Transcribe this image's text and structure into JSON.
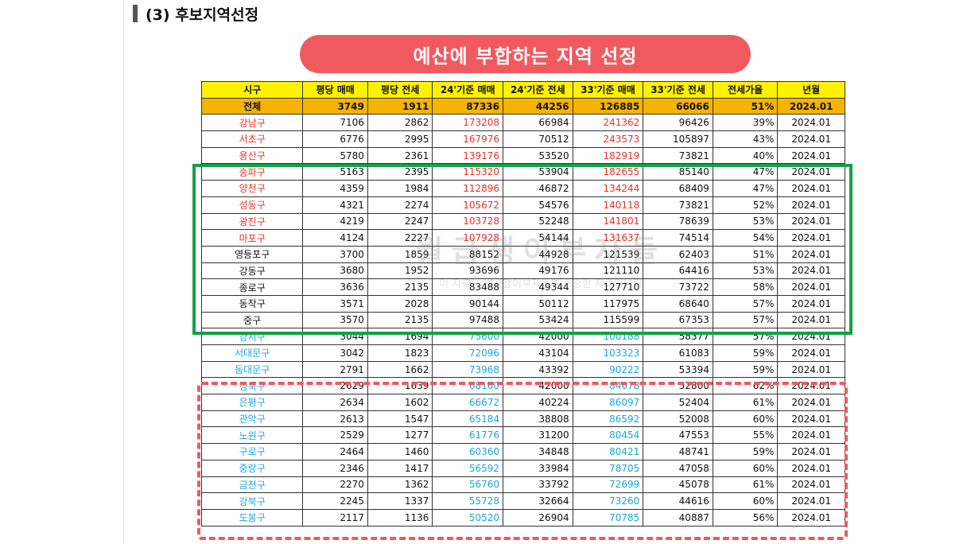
{
  "section_title": "(3) 후보지역선정",
  "banner": "예산에 부합하는 지역 선정",
  "watermark": {
    "main": "월급쟁이부자들",
    "sub": "이 자료는 월급쟁이부자들의 소중한 자료입니다"
  },
  "colors": {
    "red": "#e8302b",
    "blue": "#1aa6dc",
    "green_box": "#14a047",
    "red_box": "#f0585d",
    "header": "#fff200",
    "total": "#f5b400"
  },
  "table": {
    "headers": [
      "시구",
      "평당 매매",
      "평당 전세",
      "24'기준 매매",
      "24'기준 전세",
      "33'기준 매매",
      "33'기준 전세",
      "전세가율",
      "년월"
    ],
    "total": [
      "전체",
      "3749",
      "1911",
      "87336",
      "44256",
      "126885",
      "66066",
      "51%",
      "2024.01"
    ],
    "rows": [
      {
        "c": "red",
        "v": [
          "강남구",
          "7106",
          "2862",
          "173208",
          "66984",
          "241362",
          "96426",
          "39%",
          "2024.01"
        ]
      },
      {
        "c": "red",
        "v": [
          "서초구",
          "6776",
          "2995",
          "167976",
          "70512",
          "243573",
          "105897",
          "43%",
          "2024.01"
        ]
      },
      {
        "c": "red",
        "v": [
          "용산구",
          "5780",
          "2361",
          "139176",
          "53520",
          "182919",
          "73821",
          "40%",
          "2024.01"
        ]
      },
      {
        "c": "red",
        "v": [
          "송파구",
          "5163",
          "2395",
          "115320",
          "53904",
          "182655",
          "85140",
          "47%",
          "2024.01"
        ]
      },
      {
        "c": "red",
        "v": [
          "양천구",
          "4359",
          "1984",
          "112896",
          "46872",
          "134244",
          "68409",
          "47%",
          "2024.01"
        ]
      },
      {
        "c": "red",
        "v": [
          "성동구",
          "4321",
          "2274",
          "105672",
          "54576",
          "140118",
          "73821",
          "52%",
          "2024.01"
        ]
      },
      {
        "c": "red",
        "v": [
          "광진구",
          "4219",
          "2247",
          "103728",
          "52248",
          "141801",
          "78639",
          "53%",
          "2024.01"
        ]
      },
      {
        "c": "red",
        "v": [
          "마포구",
          "4124",
          "2227",
          "107928",
          "54144",
          "131637",
          "74514",
          "54%",
          "2024.01"
        ]
      },
      {
        "c": "black",
        "v": [
          "영등포구",
          "3700",
          "1859",
          "88152",
          "44928",
          "121539",
          "62403",
          "51%",
          "2024.01"
        ]
      },
      {
        "c": "black",
        "v": [
          "강동구",
          "3680",
          "1952",
          "93696",
          "49176",
          "121110",
          "64416",
          "53%",
          "2024.01"
        ]
      },
      {
        "c": "black",
        "v": [
          "종로구",
          "3636",
          "2135",
          "83488",
          "49344",
          "127710",
          "73722",
          "58%",
          "2024.01"
        ]
      },
      {
        "c": "black",
        "v": [
          "동작구",
          "3571",
          "2028",
          "90144",
          "50112",
          "117975",
          "68640",
          "57%",
          "2024.01"
        ]
      },
      {
        "c": "black",
        "v": [
          "중구",
          "3570",
          "2135",
          "97488",
          "53424",
          "115599",
          "67353",
          "57%",
          "2024.01"
        ]
      },
      {
        "c": "blue",
        "v": [
          "강서구",
          "3044",
          "1694",
          "75600",
          "42000",
          "100188",
          "58377",
          "57%",
          "2024.01"
        ]
      },
      {
        "c": "blue",
        "v": [
          "서대문구",
          "3042",
          "1823",
          "72096",
          "43104",
          "103323",
          "61083",
          "59%",
          "2024.01"
        ]
      },
      {
        "c": "blue",
        "v": [
          "동대문구",
          "2791",
          "1662",
          "73968",
          "43392",
          "90222",
          "53394",
          "59%",
          "2024.01"
        ]
      },
      {
        "c": "blue",
        "v": [
          "성북구",
          "2629",
          "1639",
          "68160",
          "42000",
          "84678",
          "52800",
          "62%",
          "2024.01"
        ]
      },
      {
        "c": "blue",
        "v": [
          "은평구",
          "2634",
          "1602",
          "66672",
          "40224",
          "86097",
          "52404",
          "61%",
          "2024.01"
        ]
      },
      {
        "c": "blue",
        "v": [
          "관악구",
          "2613",
          "1547",
          "65184",
          "38808",
          "86592",
          "52008",
          "60%",
          "2024.01"
        ]
      },
      {
        "c": "blue",
        "v": [
          "노원구",
          "2529",
          "1277",
          "61776",
          "31200",
          "80454",
          "47553",
          "55%",
          "2024.01"
        ]
      },
      {
        "c": "blue",
        "v": [
          "구로구",
          "2464",
          "1460",
          "60360",
          "34848",
          "80421",
          "48741",
          "59%",
          "2024.01"
        ]
      },
      {
        "c": "blue",
        "v": [
          "중랑구",
          "2346",
          "1417",
          "56592",
          "33984",
          "78705",
          "47058",
          "60%",
          "2024.01"
        ]
      },
      {
        "c": "blue",
        "v": [
          "금천구",
          "2270",
          "1362",
          "56760",
          "33792",
          "72699",
          "45078",
          "61%",
          "2024.01"
        ]
      },
      {
        "c": "blue",
        "v": [
          "강북구",
          "2245",
          "1337",
          "55728",
          "32664",
          "73260",
          "44616",
          "60%",
          "2024.01"
        ]
      },
      {
        "c": "blue",
        "v": [
          "도봉구",
          "2117",
          "1136",
          "50520",
          "26904",
          "70785",
          "40887",
          "56%",
          "2024.01"
        ]
      }
    ]
  }
}
